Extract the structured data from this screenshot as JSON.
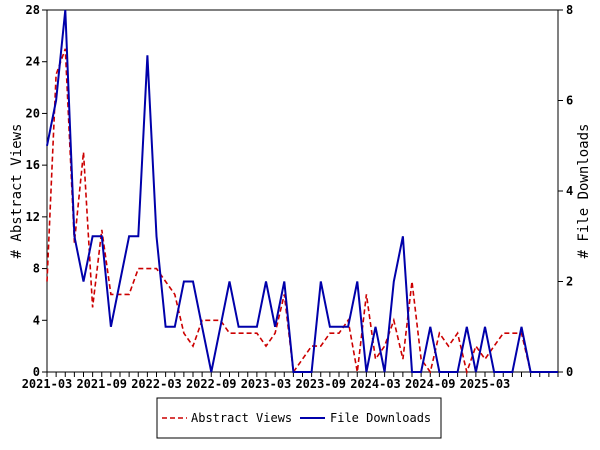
{
  "chart_data": {
    "type": "line",
    "title": "",
    "xlabel": "",
    "ylabel_left": "# Abstract Views",
    "ylabel_right": "# File Downloads",
    "x_start": "2021-03",
    "x_end": "2025-11",
    "x_ticks": [
      "2021-03",
      "2021-09",
      "2022-03",
      "2022-09",
      "2023-03",
      "2023-09",
      "2024-03",
      "2024-09",
      "2025-03"
    ],
    "ylim_left": [
      0,
      28
    ],
    "y_ticks_left": [
      0,
      4,
      8,
      12,
      16,
      20,
      24,
      28
    ],
    "ylim_right": [
      0,
      8
    ],
    "y_ticks_right": [
      0,
      2,
      4,
      6,
      8
    ],
    "grid": false,
    "legend_position": "bottom",
    "x": [
      "2021-03",
      "2021-04",
      "2021-05",
      "2021-06",
      "2021-07",
      "2021-08",
      "2021-09",
      "2021-10",
      "2021-11",
      "2021-12",
      "2022-01",
      "2022-02",
      "2022-03",
      "2022-04",
      "2022-05",
      "2022-06",
      "2022-07",
      "2022-08",
      "2022-09",
      "2022-10",
      "2022-11",
      "2022-12",
      "2023-01",
      "2023-02",
      "2023-03",
      "2023-04",
      "2023-05",
      "2023-06",
      "2023-07",
      "2023-08",
      "2023-09",
      "2023-10",
      "2023-11",
      "2023-12",
      "2024-01",
      "2024-02",
      "2024-03",
      "2024-04",
      "2024-05",
      "2024-06",
      "2024-07",
      "2024-08",
      "2024-09",
      "2024-10",
      "2024-11",
      "2024-12",
      "2025-01",
      "2025-02",
      "2025-03",
      "2025-04",
      "2025-05",
      "2025-06",
      "2025-07",
      "2025-08",
      "2025-09",
      "2025-10",
      "2025-11"
    ],
    "series": [
      {
        "name": "Abstract Views",
        "axis": "left",
        "color": "#cc0000",
        "style": "dashed",
        "values": [
          7,
          23,
          25,
          10,
          17,
          5,
          11,
          6,
          6,
          6,
          8,
          8,
          8,
          7,
          6,
          3,
          2,
          4,
          4,
          4,
          3,
          3,
          3,
          3,
          2,
          3,
          6,
          0,
          1,
          2,
          2,
          3,
          3,
          4,
          0,
          6,
          1,
          2,
          4,
          1,
          7,
          1,
          0,
          3,
          2,
          3,
          0,
          2,
          1,
          2,
          3,
          3,
          3,
          0,
          0,
          0,
          0
        ]
      },
      {
        "name": "File Downloads",
        "axis": "right",
        "color": "#0000aa",
        "style": "solid",
        "values": [
          5,
          6,
          8,
          3,
          2,
          3,
          3,
          1,
          2,
          3,
          3,
          7,
          3,
          1,
          1,
          2,
          2,
          1,
          0,
          1,
          2,
          1,
          1,
          1,
          2,
          1,
          2,
          0,
          0,
          0,
          2,
          1,
          1,
          1,
          2,
          0,
          1,
          0,
          2,
          3,
          0,
          0,
          1,
          0,
          0,
          0,
          1,
          0,
          1,
          0,
          0,
          0,
          1,
          0,
          0,
          0,
          0
        ]
      }
    ]
  }
}
